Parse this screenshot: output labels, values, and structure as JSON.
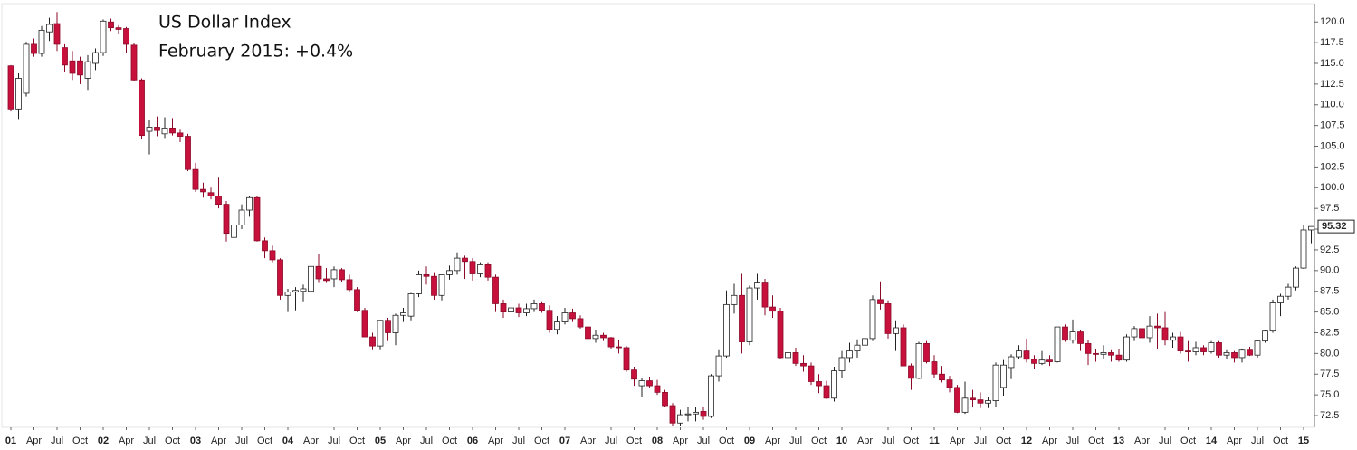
{
  "chart_data": {
    "type": "candlestick",
    "title": "US Dollar Index",
    "subtitle": "February 2015: +0.4%",
    "up_color": "#ffffff",
    "down_color": "#c8103c",
    "categories": [
      "01",
      null,
      null,
      "Apr",
      null,
      null,
      "Jul",
      null,
      null,
      "Oct",
      null,
      null,
      "02",
      null,
      null,
      "Apr",
      null,
      null,
      "Jul",
      null,
      null,
      "Oct",
      null,
      null,
      "03",
      null,
      null,
      "Apr",
      null,
      null,
      "Jul",
      null,
      null,
      "Oct",
      null,
      null,
      "04",
      null,
      null,
      "Apr",
      null,
      null,
      "Jul",
      null,
      null,
      "Oct",
      null,
      null,
      "05",
      null,
      null,
      "Apr",
      null,
      null,
      "Jul",
      null,
      null,
      "Oct",
      null,
      null,
      "06",
      null,
      null,
      "Apr",
      null,
      null,
      "Jul",
      null,
      null,
      "Oct",
      null,
      null,
      "07",
      null,
      null,
      "Apr",
      null,
      null,
      "Jul",
      null,
      null,
      "Oct",
      null,
      null,
      "08",
      null,
      null,
      "Apr",
      null,
      null,
      "Jul",
      null,
      null,
      "Oct",
      null,
      null,
      "09",
      null,
      null,
      "Apr",
      null,
      null,
      "Jul",
      null,
      null,
      "Oct",
      null,
      null,
      "10",
      null,
      null,
      "Apr",
      null,
      null,
      "Jul",
      null,
      null,
      "Oct",
      null,
      null,
      "11",
      null,
      null,
      "Apr",
      null,
      null,
      "Jul",
      null,
      null,
      "Oct",
      null,
      null,
      "12",
      null,
      null,
      "Apr",
      null,
      null,
      "Jul",
      null,
      null,
      "Oct",
      null,
      null,
      "13",
      null,
      null,
      "Apr",
      null,
      null,
      "Jul",
      null,
      null,
      "Oct",
      null,
      null,
      "14",
      null,
      null,
      "Apr",
      null,
      null,
      "Jul",
      null,
      null,
      "Oct",
      null,
      null,
      "15",
      null
    ],
    "open": [
      114.7,
      109.5,
      111.4,
      117.3,
      116.2,
      118.8,
      119.8,
      116.9,
      115.3,
      115.3,
      113.2,
      115.0,
      116.3,
      120.0,
      119.3,
      119.2,
      117.2,
      113.0,
      106.8,
      107.3,
      106.5,
      107.2,
      106.6,
      106.2,
      102.2,
      99.8,
      99.4,
      99.0,
      98.0,
      94.0,
      95.5,
      97.3,
      98.8,
      93.6,
      92.4,
      91.3,
      87.0,
      87.4,
      87.5,
      87.5,
      90.5,
      89.0,
      89.0,
      90.1,
      88.9,
      87.7,
      85.2,
      82.0,
      80.9,
      84.0,
      82.5,
      84.6,
      84.5,
      87.2,
      89.5,
      89.3,
      87.0,
      89.5,
      90.0,
      91.5,
      91.1,
      89.6,
      90.7,
      89.2,
      86.0,
      85.0,
      85.5,
      84.9,
      85.4,
      86.0,
      85.2,
      82.9,
      83.8,
      84.9,
      84.2,
      83.2,
      81.8,
      82.2,
      81.9,
      80.8,
      80.7,
      78.0,
      76.1,
      76.7,
      76.1,
      75.3,
      73.7,
      71.6,
      72.6,
      72.7,
      73.0,
      72.4,
      77.3,
      79.7,
      85.9,
      87.0,
      81.4,
      87.9,
      88.5,
      85.6,
      85.1,
      79.5,
      80.1,
      78.8,
      78.5,
      76.6,
      76.1,
      74.6,
      77.9,
      79.5,
      80.3,
      81.0,
      81.8,
      86.5,
      86.0,
      82.4,
      83.1,
      78.5,
      77.0,
      81.2,
      79.0,
      77.5,
      76.8,
      75.9,
      72.9,
      74.6,
      74.4,
      74.0,
      74.3,
      75.9,
      78.3,
      79.6,
      80.3,
      79.3,
      78.8,
      79.2,
      79.0,
      83.2,
      81.6,
      82.6,
      81.2,
      80.0,
      79.9,
      80.1,
      79.8,
      79.2,
      82.0,
      83.0,
      81.9,
      83.3,
      83.1,
      81.6,
      82.0,
      80.3,
      80.2,
      80.7,
      80.2,
      81.3,
      79.8,
      80.1,
      79.5,
      80.4,
      79.8,
      81.5,
      82.7,
      86.1,
      86.9,
      88.0,
      90.3,
      94.9
    ],
    "high": [
      114.8,
      113.8,
      117.6,
      118.0,
      119.5,
      120.5,
      121.2,
      117.3,
      116.5,
      115.8,
      116.0,
      116.8,
      120.3,
      120.4,
      119.6,
      119.4,
      117.5,
      113.2,
      108.2,
      108.6,
      108.5,
      108.4,
      107.0,
      106.5,
      103.0,
      100.6,
      100.0,
      101.2,
      98.4,
      96.0,
      98.0,
      99.0,
      99.0,
      94.0,
      93.0,
      91.5,
      87.8,
      88.0,
      88.3,
      90.5,
      92.0,
      90.3,
      90.5,
      90.3,
      89.5,
      88.0,
      85.5,
      82.5,
      84.0,
      84.3,
      84.8,
      85.5,
      87.3,
      90.0,
      90.5,
      89.8,
      89.5,
      90.6,
      92.2,
      91.8,
      91.5,
      91.0,
      91.0,
      89.5,
      86.5,
      87.0,
      86.0,
      86.0,
      86.5,
      86.3,
      85.8,
      84.5,
      85.5,
      85.4,
      84.6,
      83.5,
      82.8,
      82.5,
      82.0,
      81.6,
      80.9,
      78.4,
      77.0,
      77.2,
      76.8,
      75.6,
      74.0,
      73.2,
      73.5,
      73.5,
      73.5,
      77.5,
      80.4,
      87.6,
      88.4,
      89.6,
      88.2,
      89.6,
      89.0,
      87.0,
      85.5,
      81.5,
      80.7,
      79.8,
      78.9,
      77.5,
      76.7,
      78.4,
      80.3,
      81.3,
      81.7,
      82.7,
      87.0,
      88.7,
      86.4,
      84.0,
      83.5,
      78.8,
      81.4,
      81.5,
      79.8,
      78.5,
      77.3,
      76.2,
      76.6,
      75.6,
      75.3,
      74.8,
      78.9,
      79.2,
      79.9,
      81.0,
      81.8,
      79.8,
      80.3,
      79.8,
      83.2,
      83.5,
      84.1,
      82.8,
      81.6,
      80.5,
      81.0,
      80.4,
      80.5,
      82.3,
      83.3,
      83.5,
      84.5,
      84.8,
      85.0,
      82.5,
      82.6,
      81.5,
      81.4,
      81.0,
      81.5,
      81.5,
      80.4,
      80.3,
      80.6,
      80.8,
      81.6,
      82.8,
      86.5,
      87.2,
      88.4,
      90.5,
      95.5,
      95.3
    ],
    "low": [
      109.2,
      108.3,
      111.0,
      115.8,
      115.8,
      117.7,
      116.5,
      114.0,
      113.0,
      112.5,
      111.8,
      114.2,
      115.9,
      118.9,
      118.5,
      116.3,
      112.9,
      105.9,
      104.0,
      106.2,
      106.0,
      106.3,
      105.5,
      102.0,
      99.5,
      98.8,
      98.6,
      97.5,
      93.5,
      92.5,
      95.0,
      96.5,
      93.5,
      91.5,
      91.0,
      86.5,
      85.0,
      85.2,
      86.3,
      87.2,
      88.5,
      88.5,
      88.0,
      88.6,
      87.5,
      85.0,
      82.0,
      80.4,
      80.4,
      81.5,
      81.0,
      83.8,
      84.0,
      86.8,
      88.3,
      86.5,
      86.4,
      88.9,
      89.5,
      89.0,
      88.8,
      89.2,
      88.8,
      85.0,
      84.3,
      84.4,
      84.4,
      84.5,
      85.0,
      84.9,
      82.5,
      82.3,
      83.5,
      83.8,
      83.0,
      81.5,
      81.3,
      81.5,
      80.5,
      80.0,
      77.8,
      76.1,
      74.8,
      75.9,
      75.0,
      73.5,
      71.3,
      71.3,
      71.8,
      71.8,
      72.0,
      72.2,
      76.6,
      79.5,
      84.8,
      80.0,
      81.0,
      86.5,
      84.6,
      84.3,
      79.3,
      79.0,
      78.5,
      77.8,
      76.2,
      75.2,
      74.5,
      74.2,
      77.0,
      78.9,
      79.5,
      80.3,
      81.5,
      85.3,
      81.8,
      80.3,
      78.5,
      75.6,
      76.9,
      78.8,
      77.0,
      76.5,
      75.3,
      72.8,
      72.7,
      73.5,
      73.4,
      73.4,
      73.6,
      74.9,
      76.9,
      79.3,
      78.9,
      78.1,
      78.6,
      78.5,
      78.9,
      81.4,
      81.2,
      80.3,
      78.6,
      79.0,
      79.4,
      79.0,
      79.0,
      79.0,
      81.5,
      81.2,
      81.3,
      80.5,
      81.0,
      80.7,
      80.0,
      79.0,
      79.8,
      79.8,
      80.0,
      79.5,
      79.3,
      78.9,
      78.9,
      79.7,
      79.5,
      81.3,
      82.5,
      84.5,
      86.5,
      87.6,
      90.2,
      93.3
    ],
    "close": [
      109.5,
      113.2,
      117.3,
      116.2,
      119.0,
      119.7,
      117.3,
      114.8,
      113.8,
      113.6,
      115.2,
      116.3,
      120.1,
      119.3,
      119.1,
      117.3,
      113.0,
      106.3,
      107.3,
      106.9,
      107.2,
      106.6,
      106.2,
      102.2,
      99.8,
      99.5,
      99.0,
      98.0,
      94.5,
      95.5,
      97.3,
      98.8,
      93.6,
      92.4,
      91.3,
      87.0,
      87.4,
      87.6,
      87.8,
      90.5,
      89.0,
      88.8,
      90.1,
      88.9,
      87.7,
      85.2,
      82.0,
      80.9,
      84.0,
      82.5,
      84.6,
      84.9,
      87.2,
      89.5,
      89.3,
      87.0,
      89.5,
      90.0,
      91.5,
      91.1,
      89.6,
      90.7,
      89.2,
      86.0,
      85.0,
      85.5,
      84.9,
      85.4,
      86.0,
      85.2,
      82.9,
      83.8,
      84.9,
      84.2,
      83.2,
      81.8,
      82.2,
      81.9,
      80.8,
      80.7,
      78.0,
      76.9,
      76.7,
      76.1,
      75.3,
      73.7,
      71.6,
      72.6,
      72.7,
      72.9,
      72.4,
      77.3,
      79.7,
      85.9,
      87.0,
      81.4,
      87.9,
      88.5,
      85.6,
      85.1,
      79.5,
      80.1,
      78.8,
      78.5,
      76.6,
      76.1,
      74.6,
      77.9,
      79.5,
      80.3,
      81.0,
      81.8,
      86.5,
      86.0,
      82.4,
      83.1,
      78.5,
      77.0,
      81.2,
      79.0,
      77.5,
      76.8,
      75.9,
      72.9,
      74.6,
      74.4,
      74.0,
      74.3,
      78.6,
      78.6,
      79.6,
      80.3,
      79.3,
      78.8,
      79.2,
      79.0,
      83.2,
      81.6,
      82.6,
      81.2,
      80.0,
      79.9,
      80.1,
      79.8,
      79.2,
      82.0,
      83.0,
      81.9,
      83.3,
      83.1,
      81.6,
      82.0,
      80.3,
      80.2,
      80.7,
      80.2,
      81.3,
      79.8,
      80.1,
      79.5,
      80.4,
      79.8,
      81.5,
      82.7,
      86.1,
      86.9,
      88.0,
      90.3,
      94.9,
      95.32
    ],
    "ylim": [
      71.3,
      122.1
    ],
    "yticks": [
      72.5,
      {
        "value": 75,
        "label": "75.0"
      },
      77.5,
      {
        "value": 80,
        "label": "80.0"
      },
      82.5,
      {
        "value": 85,
        "label": "85.0"
      },
      87.5,
      {
        "value": 90,
        "label": "90.0"
      },
      92.5,
      {
        "value": 95,
        "label": "95.0"
      },
      97.5,
      {
        "value": 100,
        "label": "100.0"
      },
      102.5,
      {
        "value": 105,
        "label": "105.0"
      },
      107.5,
      {
        "value": 110,
        "label": "110.0"
      },
      112.5,
      {
        "value": 115,
        "label": "115.0"
      },
      117.5,
      {
        "value": 120,
        "label": "120.0"
      }
    ],
    "y_axis_side": "right",
    "grid": false
  }
}
